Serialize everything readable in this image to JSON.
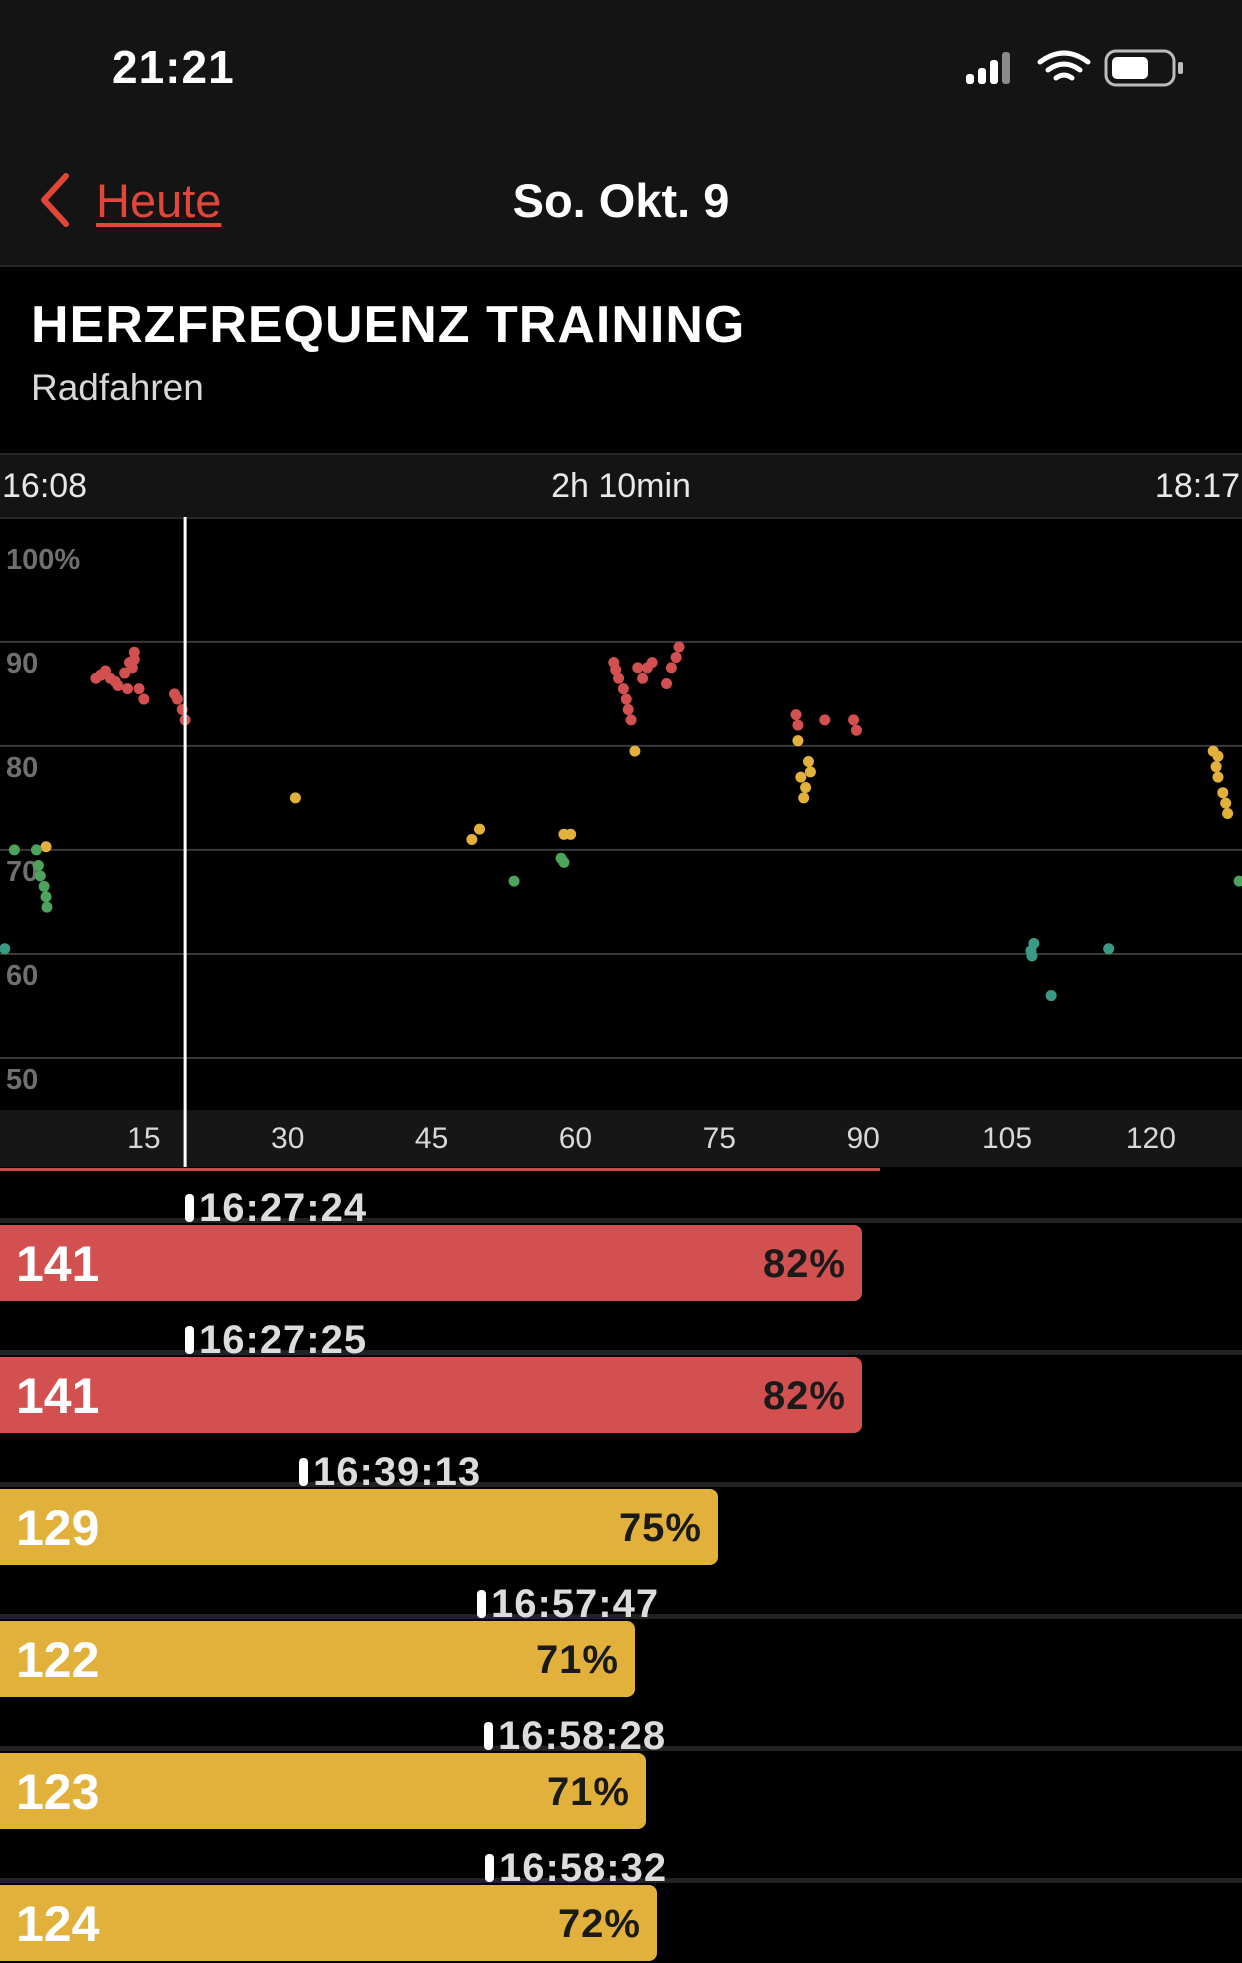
{
  "status_bar": {
    "time": "21:21"
  },
  "nav": {
    "back_label": "Heute",
    "title": "So. Okt. 9"
  },
  "section": {
    "title": "HERZFREQUENZ TRAINING",
    "subtitle": "Radfahren"
  },
  "range": {
    "start": "16:08",
    "duration": "2h 10min",
    "end": "18:17"
  },
  "colors": {
    "accent": "#e0463a",
    "zone_red": "#d25050",
    "zone_yellow": "#e2b13c",
    "zone_green": "#4ea35c",
    "zone_teal": "#3a9a86"
  },
  "chart_data": {
    "type": "scatter",
    "ylabel_ticks": [
      "100%",
      "90",
      "80",
      "70",
      "60",
      "50"
    ],
    "yticks": [
      100,
      90,
      80,
      70,
      60,
      50
    ],
    "ylim": [
      45,
      102
    ],
    "xticks": [
      15,
      30,
      45,
      60,
      75,
      90,
      105,
      120
    ],
    "xlim": [
      0,
      129.5
    ],
    "cursor_x": 19.3,
    "series": [
      {
        "zone": "red",
        "points": [
          [
            10,
            86.5
          ],
          [
            10.5,
            86.8
          ],
          [
            11,
            87.2
          ],
          [
            11.5,
            86.5
          ],
          [
            12,
            86.2
          ],
          [
            12.3,
            85.8
          ],
          [
            13,
            87
          ],
          [
            13.3,
            85.5
          ],
          [
            13.5,
            88
          ],
          [
            14,
            89
          ],
          [
            14,
            88.3
          ],
          [
            13.8,
            87.5
          ],
          [
            14.5,
            85.5
          ],
          [
            15,
            84.5
          ],
          [
            18.2,
            85
          ],
          [
            18.5,
            84.5
          ],
          [
            19,
            83.5
          ],
          [
            19.3,
            82.5
          ],
          [
            64,
            88
          ],
          [
            64.2,
            87.3
          ],
          [
            64.5,
            86.5
          ],
          [
            65,
            85.5
          ],
          [
            65.3,
            84.5
          ],
          [
            65.5,
            83.5
          ],
          [
            65.8,
            82.5
          ],
          [
            66.5,
            87.5
          ],
          [
            67,
            86.5
          ],
          [
            67.5,
            87.5
          ],
          [
            68,
            88
          ],
          [
            69.5,
            86
          ],
          [
            70,
            87.5
          ],
          [
            70.5,
            88.5
          ],
          [
            70.8,
            89.5
          ],
          [
            83,
            83
          ],
          [
            83.2,
            82
          ],
          [
            86,
            82.5
          ],
          [
            89,
            82.5
          ],
          [
            89.3,
            81.5
          ]
        ]
      },
      {
        "zone": "yellow",
        "points": [
          [
            4.8,
            70.3
          ],
          [
            30.8,
            75
          ],
          [
            49.2,
            71
          ],
          [
            50,
            72
          ],
          [
            66.2,
            79.5
          ],
          [
            58.8,
            71.5
          ],
          [
            59.5,
            71.5
          ],
          [
            83.2,
            80.5
          ],
          [
            83.5,
            77
          ],
          [
            84,
            76
          ],
          [
            84.5,
            77.5
          ],
          [
            83.8,
            75
          ],
          [
            84.3,
            78.5
          ],
          [
            126.5,
            79.5
          ],
          [
            127,
            79
          ],
          [
            126.8,
            78
          ],
          [
            127,
            77
          ],
          [
            127.5,
            75.5
          ],
          [
            127.8,
            74.5
          ],
          [
            128,
            73.5
          ]
        ]
      },
      {
        "zone": "green",
        "points": [
          [
            1.5,
            70
          ],
          [
            3.8,
            70
          ],
          [
            4,
            68.5
          ],
          [
            4.2,
            67.5
          ],
          [
            4.6,
            66.5
          ],
          [
            4.8,
            65.5
          ],
          [
            4.9,
            64.5
          ],
          [
            53.6,
            67
          ],
          [
            58.5,
            69.2
          ],
          [
            58.8,
            68.8
          ],
          [
            129.2,
            67
          ]
        ]
      },
      {
        "zone": "teal",
        "points": [
          [
            0.5,
            60.5
          ],
          [
            107.5,
            60.3
          ],
          [
            107.8,
            61
          ],
          [
            107.6,
            59.8
          ],
          [
            109.6,
            56
          ],
          [
            115.6,
            60.5
          ]
        ]
      }
    ]
  },
  "samples": [
    {
      "time": "16:27:24",
      "bpm": "141",
      "percent": "82%",
      "zone": "red",
      "fill": 0.694
    },
    {
      "time": "16:27:25",
      "bpm": "141",
      "percent": "82%",
      "zone": "red",
      "fill": 0.694
    },
    {
      "time": "16:39:13",
      "bpm": "129",
      "percent": "75%",
      "zone": "yellow",
      "fill": 0.578
    },
    {
      "time": "16:57:47",
      "bpm": "122",
      "percent": "71%",
      "zone": "yellow",
      "fill": 0.511
    },
    {
      "time": "16:58:28",
      "bpm": "123",
      "percent": "71%",
      "zone": "yellow",
      "fill": 0.52
    },
    {
      "time": "16:58:32",
      "bpm": "124",
      "percent": "72%",
      "zone": "yellow",
      "fill": 0.529
    }
  ]
}
